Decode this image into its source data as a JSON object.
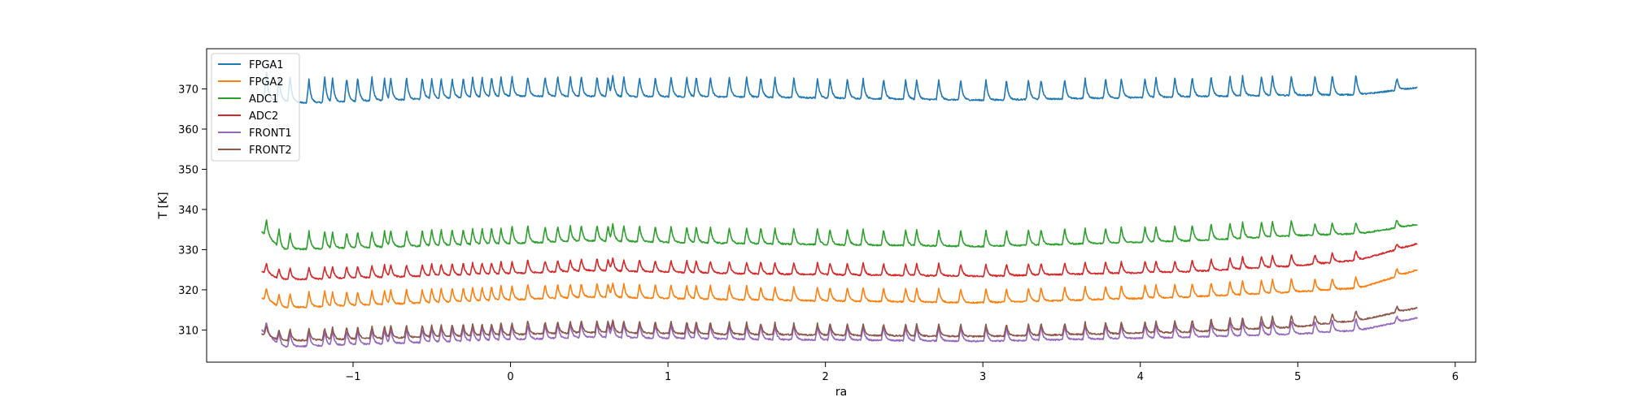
{
  "chart_data": {
    "type": "line",
    "xlabel": "ra",
    "ylabel": "T [K]",
    "xlim": [
      -1.93,
      6.13
    ],
    "ylim": [
      302,
      380
    ],
    "xticks": [
      -1,
      0,
      1,
      2,
      3,
      4,
      5,
      6
    ],
    "xtick_labels": [
      "−1",
      "0",
      "1",
      "2",
      "3",
      "4",
      "5",
      "6"
    ],
    "yticks": [
      310,
      320,
      330,
      340,
      350,
      360,
      370
    ],
    "ytick_labels": [
      "310",
      "320",
      "330",
      "340",
      "350",
      "360",
      "370"
    ],
    "grid": false,
    "legend_position": "upper-left",
    "x_range": [
      -1.58,
      5.76
    ],
    "spike_positions": [
      -1.55,
      -1.47,
      -1.4,
      -1.28,
      -1.18,
      -1.13,
      -1.04,
      -0.97,
      -0.88,
      -0.8,
      -0.76,
      -0.66,
      -0.56,
      -0.5,
      -0.44,
      -0.37,
      -0.3,
      -0.24,
      -0.18,
      -0.12,
      -0.06,
      0.01,
      0.11,
      0.22,
      0.3,
      0.38,
      0.45,
      0.55,
      0.62,
      0.65,
      0.72,
      0.82,
      0.92,
      1.02,
      1.12,
      1.18,
      1.27,
      1.39,
      1.5,
      1.59,
      1.68,
      1.8,
      1.95,
      2.03,
      2.14,
      2.24,
      2.37,
      2.51,
      2.58,
      2.72,
      2.86,
      3.02,
      3.15,
      3.29,
      3.37,
      3.52,
      3.65,
      3.78,
      3.88,
      4.03,
      4.1,
      4.22,
      4.33,
      4.45,
      4.57,
      4.65,
      4.77,
      4.84,
      4.96,
      5.11,
      5.22,
      5.37,
      5.63
    ],
    "series": [
      {
        "name": "FPGA1",
        "color": "#1f77b4",
        "start": 367.5,
        "base": [
          [
            -1.58,
            367.5
          ],
          [
            -1.3,
            366.5
          ],
          [
            0.0,
            368.2
          ],
          [
            1.5,
            368.0
          ],
          [
            3.0,
            367.2
          ],
          [
            4.5,
            368.2
          ],
          [
            5.4,
            368.6
          ],
          [
            5.76,
            370.3
          ]
        ],
        "spike_heights": [
          7.0,
          5.5,
          6.5,
          6.0,
          6.5,
          6.0,
          6.0,
          6.0,
          6.0,
          5.5,
          5.5,
          5.5,
          5.5,
          5.0,
          5.0,
          5.0,
          5.0,
          5.0,
          5.0,
          5.0,
          5.0,
          5.0,
          5.0,
          5.0,
          5.0,
          5.0,
          5.0,
          5.0,
          5.0,
          5.0,
          5.0,
          5.0,
          5.0,
          5.0,
          5.0,
          5.0,
          5.0,
          5.0,
          5.0,
          5.0,
          5.0,
          5.0,
          5.0,
          5.0,
          5.0,
          5.0,
          5.0,
          5.0,
          5.0,
          5.0,
          5.0,
          5.0,
          5.0,
          5.0,
          5.0,
          5.0,
          5.0,
          5.0,
          5.0,
          5.0,
          5.0,
          5.0,
          5.0,
          5.0,
          5.0,
          5.0,
          5.0,
          5.0,
          5.0,
          5.0,
          5.0,
          5.0,
          3.0
        ]
      },
      {
        "name": "FPGA2",
        "color": "#ff7f0e",
        "start": 318.0,
        "base": [
          [
            -1.58,
            318.0
          ],
          [
            -1.45,
            315.5
          ],
          [
            0.0,
            317.5
          ],
          [
            0.5,
            318.2
          ],
          [
            1.5,
            317.5
          ],
          [
            3.0,
            316.8
          ],
          [
            4.3,
            318.2
          ],
          [
            5.0,
            319.5
          ],
          [
            5.4,
            320.5
          ],
          [
            5.76,
            325.0
          ]
        ],
        "spike_heights": [
          3.0,
          3.0,
          3.5,
          4.0,
          4.0,
          3.5,
          3.5,
          3.5,
          3.5,
          3.5,
          3.5,
          3.5,
          3.5,
          3.5,
          3.5,
          3.5,
          3.5,
          3.5,
          3.5,
          3.5,
          3.5,
          3.5,
          4.0,
          3.5,
          3.5,
          3.5,
          3.5,
          3.5,
          3.5,
          3.5,
          3.5,
          3.5,
          3.5,
          3.5,
          3.5,
          3.5,
          3.5,
          3.5,
          3.5,
          3.5,
          3.5,
          3.5,
          3.5,
          3.5,
          3.5,
          3.5,
          3.5,
          3.5,
          3.5,
          3.5,
          3.5,
          3.5,
          3.5,
          3.5,
          3.5,
          3.5,
          3.5,
          3.5,
          3.5,
          3.5,
          3.5,
          3.5,
          3.5,
          3.5,
          3.5,
          3.5,
          3.5,
          3.5,
          3.5,
          3.0,
          3.0,
          3.0,
          2.0
        ]
      },
      {
        "name": "ADC1",
        "color": "#2ca02c",
        "start": 334.5,
        "base": [
          [
            -1.58,
            334.5
          ],
          [
            -1.45,
            330.0
          ],
          [
            0.0,
            331.5
          ],
          [
            0.5,
            332.2
          ],
          [
            1.5,
            331.5
          ],
          [
            3.0,
            330.8
          ],
          [
            4.3,
            332.2
          ],
          [
            5.0,
            333.5
          ],
          [
            5.4,
            334.0
          ],
          [
            5.76,
            336.3
          ]
        ],
        "spike_heights": [
          4.0,
          4.5,
          4.0,
          4.5,
          4.5,
          4.0,
          4.0,
          4.0,
          4.0,
          4.0,
          4.0,
          4.0,
          4.0,
          4.0,
          4.0,
          4.0,
          4.0,
          4.0,
          4.0,
          4.0,
          4.0,
          4.5,
          4.5,
          4.0,
          4.0,
          4.0,
          4.0,
          4.0,
          4.0,
          4.0,
          4.0,
          4.0,
          4.0,
          4.0,
          4.0,
          4.0,
          4.0,
          4.0,
          4.0,
          4.0,
          4.0,
          4.0,
          4.0,
          4.0,
          4.0,
          4.0,
          4.0,
          4.0,
          4.0,
          4.0,
          4.0,
          4.0,
          4.0,
          4.0,
          4.0,
          4.0,
          4.0,
          4.0,
          4.0,
          4.0,
          4.0,
          4.0,
          4.0,
          4.0,
          4.0,
          4.0,
          4.0,
          4.0,
          4.0,
          3.0,
          3.0,
          3.0,
          2.0
        ]
      },
      {
        "name": "ADC2",
        "color": "#d62728",
        "start": 324.5,
        "base": [
          [
            -1.58,
            324.5
          ],
          [
            -1.45,
            322.5
          ],
          [
            0.0,
            324.0
          ],
          [
            0.5,
            324.8
          ],
          [
            1.5,
            324.0
          ],
          [
            3.0,
            323.4
          ],
          [
            4.3,
            324.5
          ],
          [
            5.0,
            326.0
          ],
          [
            5.4,
            327.5
          ],
          [
            5.76,
            331.5
          ]
        ],
        "spike_heights": [
          2.5,
          2.5,
          3.0,
          3.0,
          3.0,
          3.0,
          3.0,
          3.0,
          3.0,
          3.0,
          3.0,
          3.0,
          3.0,
          3.0,
          3.0,
          3.0,
          3.0,
          3.0,
          3.0,
          3.0,
          3.0,
          3.0,
          3.5,
          3.0,
          3.0,
          3.0,
          3.0,
          3.0,
          3.0,
          3.0,
          3.0,
          3.0,
          3.0,
          3.0,
          3.0,
          3.0,
          3.0,
          3.0,
          3.0,
          3.0,
          3.0,
          3.0,
          3.0,
          3.0,
          3.0,
          3.0,
          3.0,
          3.0,
          3.0,
          3.0,
          3.0,
          3.0,
          3.0,
          3.0,
          3.0,
          3.0,
          3.0,
          3.0,
          3.0,
          3.0,
          3.0,
          3.0,
          3.0,
          3.0,
          3.0,
          3.0,
          3.0,
          3.0,
          3.0,
          2.5,
          2.5,
          2.5,
          1.5
        ]
      },
      {
        "name": "FRONT1",
        "color": "#9467bd",
        "start": 310.0,
        "base": [
          [
            -1.58,
            310.0
          ],
          [
            -1.45,
            305.8
          ],
          [
            0.0,
            307.6
          ],
          [
            0.5,
            308.2
          ],
          [
            1.5,
            307.7
          ],
          [
            3.0,
            307.2
          ],
          [
            4.3,
            308.2
          ],
          [
            5.0,
            309.0
          ],
          [
            5.4,
            310.0
          ],
          [
            5.76,
            313.0
          ]
        ],
        "spike_heights": [
          3.0,
          3.0,
          3.5,
          3.5,
          3.5,
          3.5,
          3.5,
          3.5,
          3.5,
          3.5,
          3.5,
          3.5,
          3.5,
          3.5,
          3.5,
          3.5,
          3.5,
          3.5,
          3.5,
          3.5,
          3.5,
          3.5,
          3.5,
          3.5,
          3.5,
          3.5,
          3.5,
          3.5,
          3.5,
          3.5,
          3.5,
          3.5,
          3.5,
          3.5,
          3.5,
          3.5,
          3.5,
          3.5,
          3.5,
          3.5,
          3.5,
          3.5,
          3.5,
          3.5,
          3.5,
          3.5,
          3.5,
          3.5,
          3.5,
          3.5,
          3.5,
          3.5,
          3.5,
          3.5,
          3.5,
          3.5,
          3.5,
          3.5,
          3.5,
          3.5,
          3.5,
          3.5,
          3.5,
          3.5,
          3.5,
          3.5,
          3.5,
          3.5,
          3.5,
          3.0,
          3.0,
          3.0,
          1.5
        ]
      },
      {
        "name": "FRONT2",
        "color": "#8c564b",
        "start": 309.0,
        "base": [
          [
            -1.58,
            309.0
          ],
          [
            -1.45,
            307.3
          ],
          [
            0.0,
            308.8
          ],
          [
            0.5,
            309.4
          ],
          [
            1.5,
            308.9
          ],
          [
            3.0,
            308.4
          ],
          [
            4.3,
            309.5
          ],
          [
            5.0,
            310.8
          ],
          [
            5.4,
            312.5
          ],
          [
            5.76,
            315.5
          ]
        ],
        "spike_heights": [
          2.5,
          2.5,
          3.0,
          3.0,
          3.0,
          3.0,
          3.0,
          3.0,
          3.0,
          3.0,
          3.0,
          3.0,
          3.0,
          3.0,
          3.0,
          3.0,
          3.0,
          3.0,
          3.0,
          3.0,
          3.0,
          3.0,
          3.5,
          3.0,
          3.0,
          3.0,
          3.0,
          3.0,
          3.0,
          3.0,
          3.0,
          3.0,
          3.0,
          3.0,
          3.0,
          3.0,
          3.0,
          3.0,
          3.0,
          3.0,
          3.0,
          3.0,
          3.0,
          3.0,
          3.0,
          3.0,
          3.0,
          3.0,
          3.0,
          3.0,
          3.0,
          3.0,
          3.0,
          3.0,
          3.0,
          3.0,
          3.0,
          3.0,
          3.0,
          3.0,
          3.0,
          3.0,
          3.0,
          3.0,
          3.0,
          3.0,
          3.0,
          3.0,
          3.0,
          2.5,
          2.5,
          2.5,
          1.5
        ]
      }
    ]
  }
}
